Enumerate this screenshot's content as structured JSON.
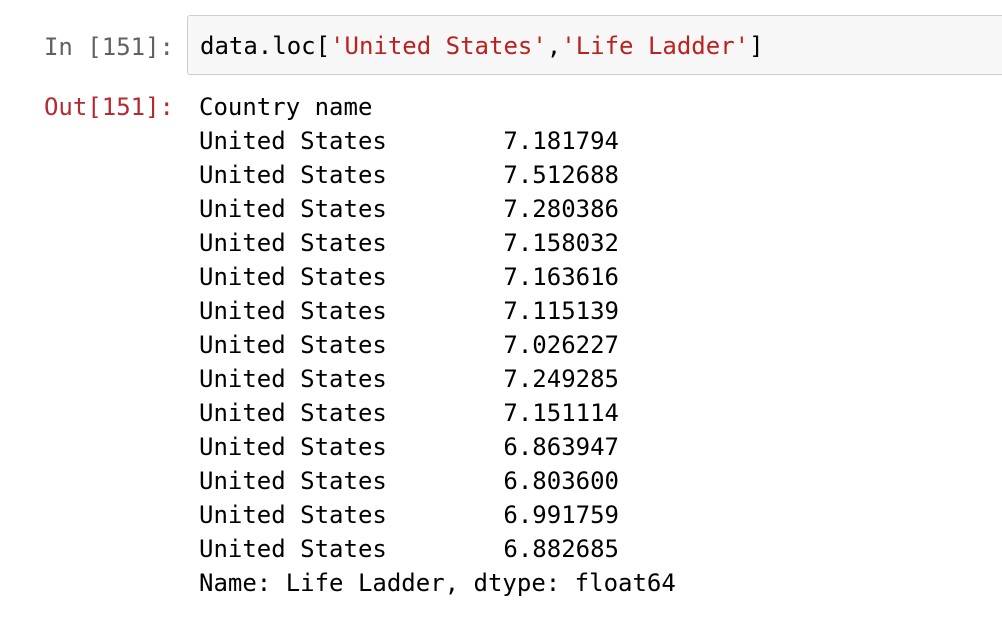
{
  "input_cell": {
    "prompt": "In [151]:",
    "code": {
      "prefix": "data.loc[",
      "arg1": "'United States'",
      "separator": ",",
      "arg2": "'Life Ladder'",
      "suffix": "]"
    }
  },
  "output_cell": {
    "prompt": "Out[151]:",
    "index_header": "Country name",
    "rows": [
      {
        "label": "United States",
        "value": "7.181794"
      },
      {
        "label": "United States",
        "value": "7.512688"
      },
      {
        "label": "United States",
        "value": "7.280386"
      },
      {
        "label": "United States",
        "value": "7.158032"
      },
      {
        "label": "United States",
        "value": "7.163616"
      },
      {
        "label": "United States",
        "value": "7.115139"
      },
      {
        "label": "United States",
        "value": "7.026227"
      },
      {
        "label": "United States",
        "value": "7.249285"
      },
      {
        "label": "United States",
        "value": "7.151114"
      },
      {
        "label": "United States",
        "value": "6.863947"
      },
      {
        "label": "United States",
        "value": "6.803600"
      },
      {
        "label": "United States",
        "value": "6.991759"
      },
      {
        "label": "United States",
        "value": "6.882685"
      }
    ],
    "footer": "Name: Life Ladder, dtype: float64"
  },
  "colors": {
    "in_prompt": "#616161",
    "out_prompt": "#b22b31",
    "string_literal": "#ba2121",
    "input_background": "#f7f7f7",
    "input_border": "#cfcfcf"
  }
}
